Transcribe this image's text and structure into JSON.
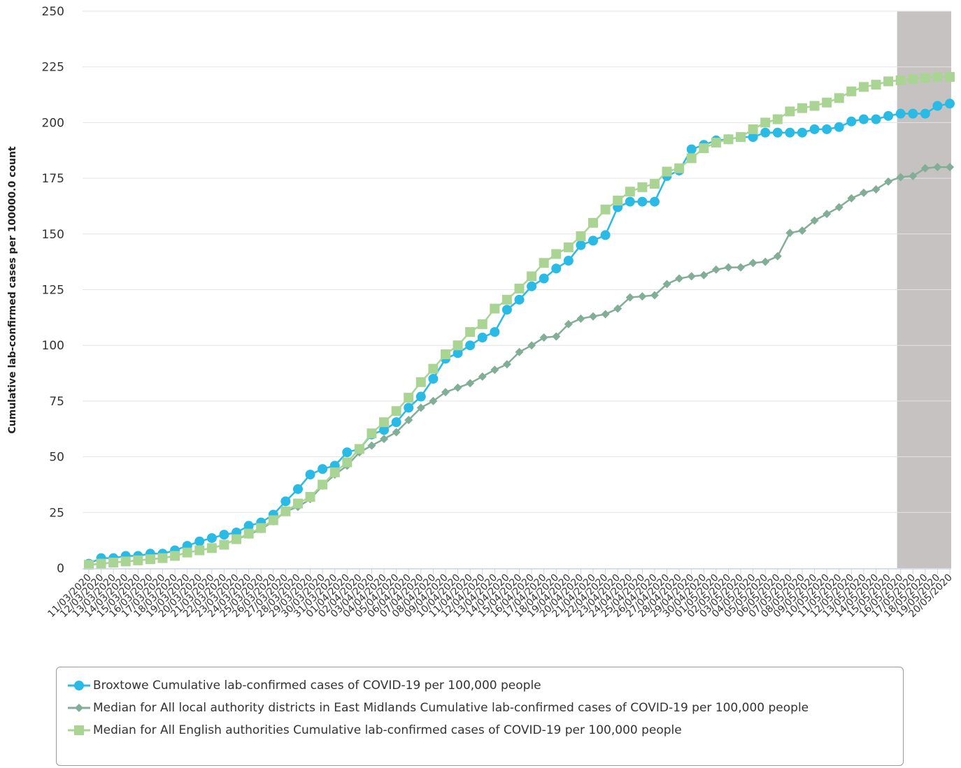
{
  "chart_data": {
    "type": "line",
    "title": "",
    "xlabel": "",
    "ylabel": "Cumulative lab-confirmed cases per 100000.0 count",
    "ylim": [
      0,
      250
    ],
    "yticks": [
      0,
      25,
      50,
      75,
      100,
      125,
      150,
      175,
      200,
      225,
      250
    ],
    "grid": true,
    "legend_position": "bottom",
    "shaded_region": {
      "from": "16/05/2020",
      "to": "20/05/2020",
      "color": "#c6c2c2"
    },
    "categories": [
      "11/03/2020",
      "12/03/2020",
      "13/03/2020",
      "14/03/2020",
      "15/03/2020",
      "16/03/2020",
      "17/03/2020",
      "18/03/2020",
      "19/03/2020",
      "20/03/2020",
      "21/03/2020",
      "22/03/2020",
      "23/03/2020",
      "24/03/2020",
      "25/03/2020",
      "26/03/2020",
      "27/03/2020",
      "28/03/2020",
      "29/03/2020",
      "30/03/2020",
      "31/03/2020",
      "01/04/2020",
      "02/04/2020",
      "03/04/2020",
      "04/04/2020",
      "05/04/2020",
      "06/04/2020",
      "07/04/2020",
      "08/04/2020",
      "09/04/2020",
      "10/04/2020",
      "11/04/2020",
      "12/04/2020",
      "13/04/2020",
      "14/04/2020",
      "15/04/2020",
      "16/04/2020",
      "17/04/2020",
      "18/04/2020",
      "19/04/2020",
      "20/04/2020",
      "21/04/2020",
      "22/04/2020",
      "23/04/2020",
      "24/04/2020",
      "25/04/2020",
      "26/04/2020",
      "27/04/2020",
      "28/04/2020",
      "29/04/2020",
      "30/04/2020",
      "01/05/2020",
      "02/05/2020",
      "03/05/2020",
      "04/05/2020",
      "05/05/2020",
      "06/05/2020",
      "07/05/2020",
      "08/05/2020",
      "09/05/2020",
      "10/05/2020",
      "11/05/2020",
      "12/05/2020",
      "13/05/2020",
      "14/05/2020",
      "15/05/2020",
      "16/05/2020",
      "17/05/2020",
      "18/05/2020",
      "19/05/2020",
      "20/05/2020"
    ],
    "series": [
      {
        "name": "Broxtowe Cumulative lab-confirmed cases of COVID-19 per 100,000 people",
        "color": "#29bae6",
        "marker": "circle",
        "values": [
          2,
          4.5,
          4.5,
          5.5,
          5.5,
          6.5,
          6.5,
          8,
          10,
          12,
          13.5,
          15,
          16,
          19,
          20.5,
          24,
          30,
          35.5,
          42,
          44.5,
          46,
          52,
          53.5,
          60,
          62,
          65.5,
          72,
          77,
          85,
          94,
          96.5,
          100,
          103.5,
          106,
          116,
          120.5,
          126.5,
          130,
          134.5,
          138,
          145,
          147,
          149.5,
          162,
          164.5,
          164.5,
          164.5,
          176,
          178.5,
          188,
          190,
          192,
          192.5,
          193.5,
          193.5,
          195.5,
          195.5,
          195.5,
          195.5,
          197,
          197,
          198,
          200.5,
          201.5,
          201.5,
          203,
          204,
          204,
          204,
          207.5,
          208.5
        ]
      },
      {
        "name": "Median for All local authority districts in East Midlands Cumulative lab-confirmed cases of COVID-19 per 100,000 people",
        "color": "#82ae98",
        "marker": "diamond",
        "values": [
          1.5,
          2,
          2.5,
          3,
          3.5,
          4,
          4.5,
          5.5,
          7,
          8,
          9,
          10.5,
          13,
          15,
          17.5,
          21,
          25.5,
          27.5,
          31,
          37,
          42,
          46,
          52,
          55,
          58,
          61,
          66.5,
          72,
          75,
          79,
          81,
          83,
          86,
          89,
          91.5,
          97,
          100,
          103.5,
          104,
          109.5,
          112,
          113,
          114,
          116.5,
          121.5,
          122,
          122.5,
          127.5,
          130,
          131,
          131.5,
          134,
          135,
          135,
          137,
          137.5,
          140,
          150.5,
          151.5,
          156,
          159,
          162,
          166,
          168.5,
          170,
          173.5,
          175.5,
          176,
          179.5,
          180,
          180
        ]
      },
      {
        "name": "Median for All English authorities Cumulative lab-confirmed cases of COVID-19 per 100,000 people",
        "color": "#aad494",
        "marker": "square",
        "values": [
          1.5,
          2,
          2.5,
          3,
          3.5,
          4,
          4.5,
          5.5,
          7,
          8,
          9,
          10.5,
          13,
          15.5,
          18,
          21.5,
          25.5,
          29,
          32,
          37.5,
          43,
          47.5,
          53.5,
          60.5,
          65.5,
          70.5,
          76.5,
          83.5,
          89.5,
          96,
          100,
          106,
          109.5,
          116.5,
          120.5,
          125.5,
          131,
          137,
          141,
          144,
          149,
          155,
          161,
          165,
          169,
          171,
          172.5,
          178,
          179.5,
          184,
          188.5,
          191,
          192.5,
          193.5,
          197,
          200,
          201.5,
          205,
          206.5,
          207.5,
          209,
          211,
          214,
          216,
          217,
          218.5,
          219,
          219.5,
          220,
          220.5,
          220.5
        ]
      }
    ]
  }
}
